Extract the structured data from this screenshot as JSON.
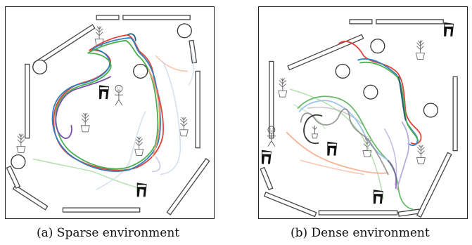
{
  "figure": {
    "captions": {
      "a": "(a) Sparse environment",
      "b": "(b) Dense environment"
    }
  },
  "colors": {
    "frame": "#222222",
    "wall": "#444444",
    "robot_traj": "#c8c8c8",
    "path_red": "#e0453a",
    "path_blue": "#2f7fc1",
    "path_green": "#4caf50",
    "path_purple": "#7b4fb0",
    "path_teal": "#1f5f6f",
    "path_orange": "#f5a07a",
    "path_gray": "#888888",
    "path_dark": "#333333",
    "path_lightblue": "#9fc4ea",
    "path_lightgreen": "#a8d8a0",
    "path_lavender": "#b4aee0"
  },
  "icons": {
    "a": [
      "plant-icon",
      "chair-icon",
      "person-icon",
      "pillar-icon"
    ],
    "b": [
      "plant-icon",
      "chair-icon",
      "person-icon",
      "pillar-icon"
    ]
  }
}
